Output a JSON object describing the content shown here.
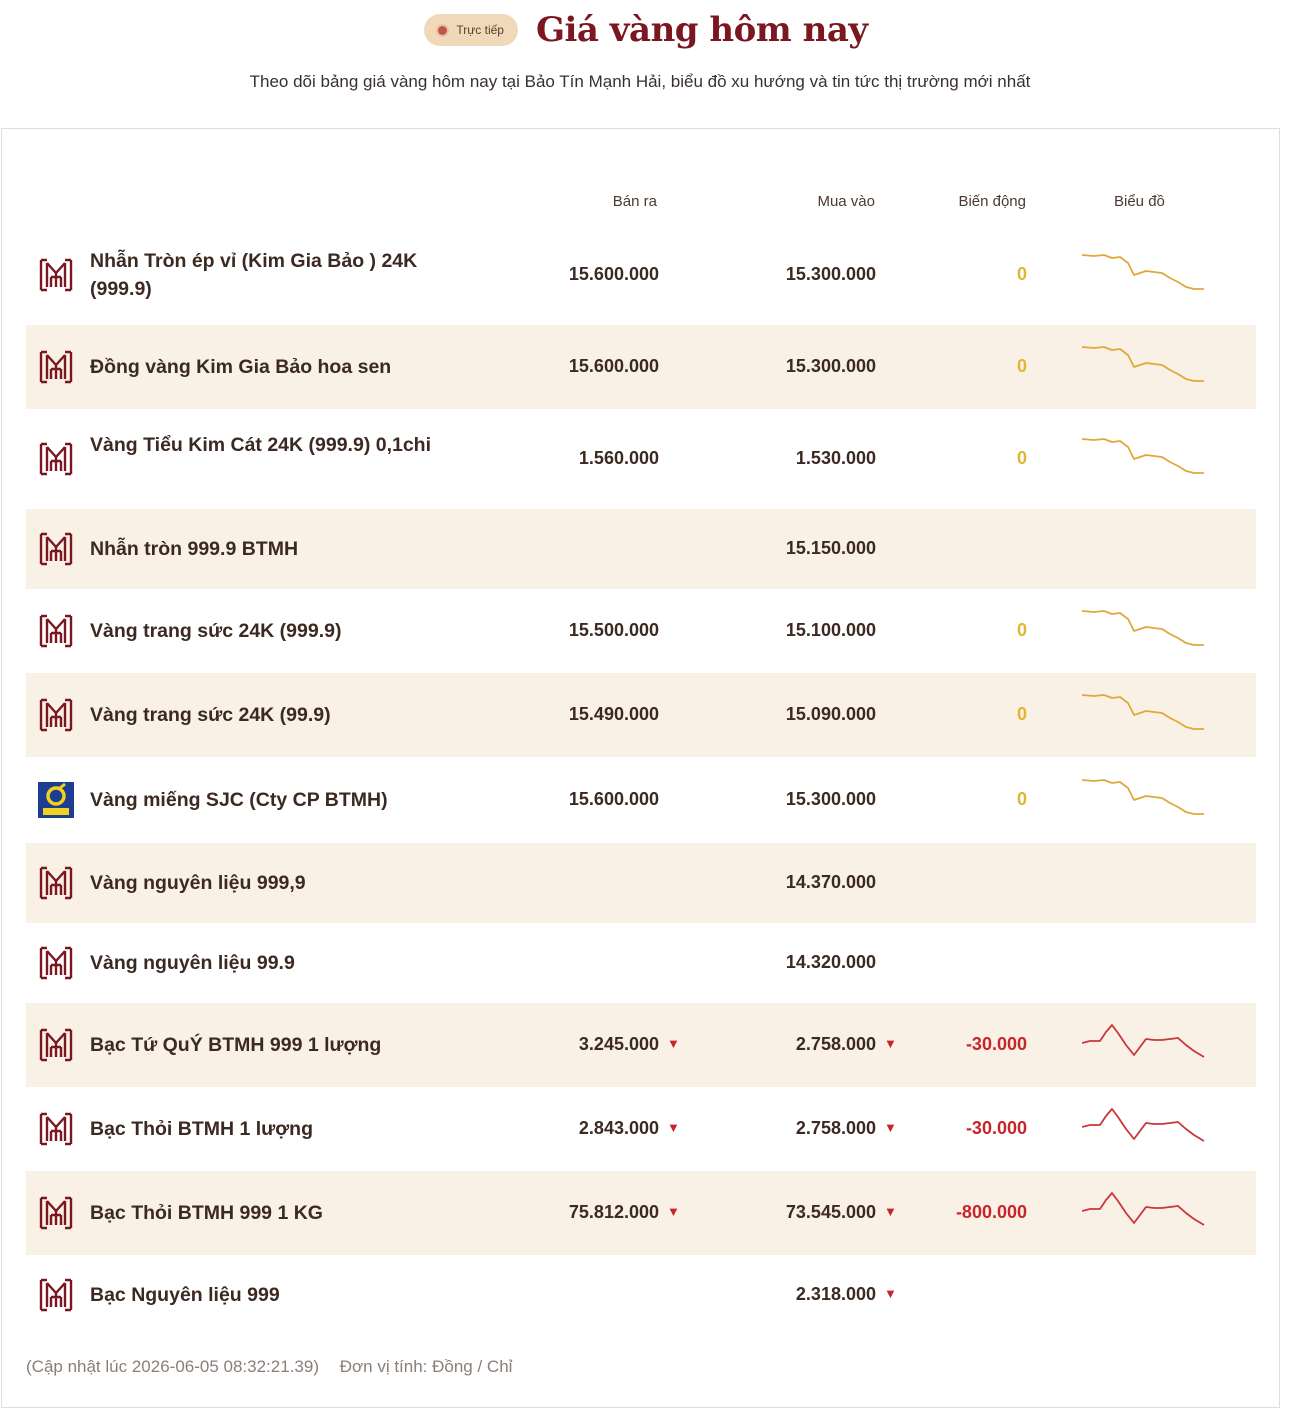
{
  "header": {
    "live_label": "Trực tiếp",
    "title": "Giá vàng hôm nay",
    "subtitle": "Theo dõi bảng giá vàng hôm nay tại Bảo Tín Mạnh Hải, biểu đồ xu hướng và tin tức thị trường mới nhất"
  },
  "table": {
    "columns": {
      "sell": "Bán ra",
      "buy": "Mua vào",
      "change": "Biến động",
      "chart": "Biểu đồ"
    },
    "rows": [
      {
        "name": "Nhẫn Tròn ép vỉ (Kim Gia Bảo ) 24K (999.9)",
        "logo": "btmh-logo-icon",
        "sell": "15.600.000",
        "buy": "15.300.000",
        "change": "0",
        "trend": "flat",
        "has_chart": true
      },
      {
        "name": "Đồng vàng Kim Gia Bảo hoa sen",
        "logo": "btmh-logo-icon",
        "sell": "15.600.000",
        "buy": "15.300.000",
        "change": "0",
        "trend": "flat",
        "has_chart": true
      },
      {
        "name": "Vàng Tiểu Kim Cát 24K (999.9) 0,1chi",
        "logo": "btmh-logo-icon",
        "sell": "1.560.000",
        "buy": "1.530.000",
        "change": "0",
        "trend": "flat",
        "has_chart": true
      },
      {
        "name": "Nhẫn tròn 999.9 BTMH",
        "logo": "btmh-logo-icon",
        "sell": "",
        "buy": "15.150.000",
        "change": "",
        "trend": "none",
        "has_chart": false
      },
      {
        "name": "Vàng trang sức 24K (999.9)",
        "logo": "btmh-logo-icon",
        "sell": "15.500.000",
        "buy": "15.100.000",
        "change": "0",
        "trend": "flat",
        "has_chart": true
      },
      {
        "name": "Vàng trang sức 24K (99.9)",
        "logo": "btmh-logo-icon",
        "sell": "15.490.000",
        "buy": "15.090.000",
        "change": "0",
        "trend": "flat",
        "has_chart": true
      },
      {
        "name": "Vàng miếng SJC (Cty CP BTMH)",
        "logo": "sjc-logo-icon",
        "sell": "15.600.000",
        "buy": "15.300.000",
        "change": "0",
        "trend": "flat",
        "has_chart": true
      },
      {
        "name": "Vàng nguyên liệu 999,9",
        "logo": "btmh-logo-icon",
        "sell": "",
        "buy": "14.370.000",
        "change": "",
        "trend": "none",
        "has_chart": false
      },
      {
        "name": "Vàng nguyên liệu 99.9",
        "logo": "btmh-logo-icon",
        "sell": "",
        "buy": "14.320.000",
        "change": "",
        "trend": "none",
        "has_chart": false
      },
      {
        "name": "Bạc Tứ QuÝ BTMH 999 1 lượng",
        "logo": "btmh-logo-icon",
        "sell": "3.245.000",
        "buy": "2.758.000",
        "change": "-30.000",
        "trend": "down",
        "has_chart": true
      },
      {
        "name": "Bạc Thỏi BTMH 1 lượng",
        "logo": "btmh-logo-icon",
        "sell": "2.843.000",
        "buy": "2.758.000",
        "change": "-30.000",
        "trend": "down",
        "has_chart": true
      },
      {
        "name": "Bạc Thỏi BTMH 999 1 KG",
        "logo": "btmh-logo-icon",
        "sell": "75.812.000",
        "buy": "73.545.000",
        "change": "-800.000",
        "trend": "down",
        "has_chart": true
      },
      {
        "name": "Bạc Nguyên liệu 999",
        "logo": "btmh-logo-icon",
        "sell": "",
        "buy": "2.318.000",
        "change": "",
        "trend": "buy-down",
        "has_chart": false
      }
    ]
  },
  "footer": {
    "updated": "(Cập nhật lúc 2026-06-05 08:32:21.39)",
    "unit": "Đơn vị tính: Đồng / Chỉ"
  },
  "colors": {
    "title": "#7a1721",
    "zero_change": "#e0b631",
    "down": "#c8242c",
    "gold_line": "#e0a83a",
    "red_line": "#c9363a",
    "row_alt": "#f9f1e6"
  },
  "icons": {
    "down_arrow": "▼",
    "live_dot": "live-dot-icon"
  }
}
